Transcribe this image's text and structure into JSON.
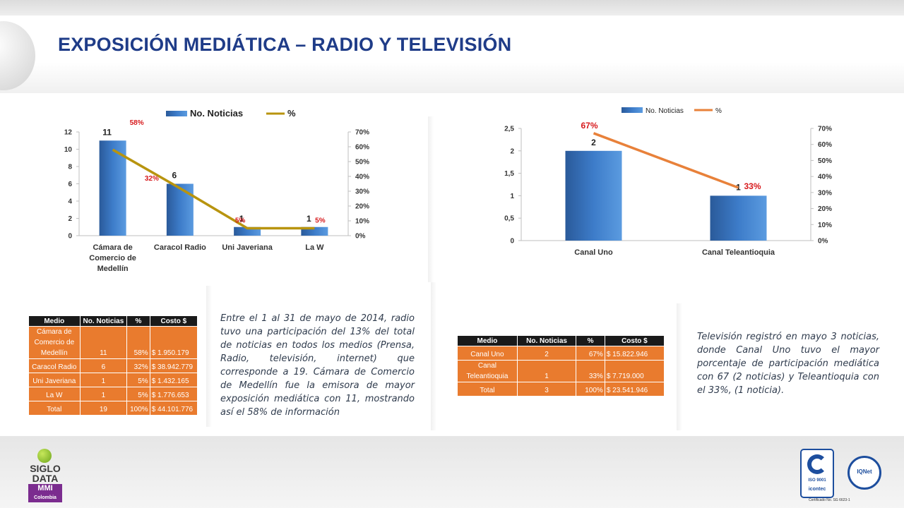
{
  "page": {
    "title": "EXPOSICIÓN MEDIÁTICA – RADIO Y TELEVISIÓN"
  },
  "chart_data": [
    {
      "type": "bar",
      "legend": [
        "No. Noticias",
        "%"
      ],
      "categories": [
        "Cámara de Comercio de Medellín",
        "Caracol Radio",
        "Uni Javeriana",
        "La W"
      ],
      "category_labels": [
        [
          "Cámara de",
          "Comercio de",
          "Medellín"
        ],
        [
          "Caracol Radio"
        ],
        [
          "Uni Javeriana"
        ],
        [
          "La W"
        ]
      ],
      "series": [
        {
          "name": "No. Noticias",
          "type": "bar",
          "values": [
            11,
            6,
            1,
            1
          ],
          "labels": [
            "11",
            "6",
            "1",
            "1"
          ],
          "axis": "left"
        },
        {
          "name": "%",
          "type": "line",
          "values": [
            58,
            32,
            5,
            5
          ],
          "labels": [
            "58%",
            "32%",
            "5%",
            "5%"
          ],
          "axis": "right"
        }
      ],
      "ylim": [
        0,
        12
      ],
      "y_ticks": [
        "0",
        "2",
        "4",
        "6",
        "8",
        "10",
        "12"
      ],
      "y2lim": [
        0,
        70
      ],
      "y2_ticks": [
        "0%",
        "10%",
        "20%",
        "30%",
        "40%",
        "50%",
        "60%",
        "70%"
      ],
      "colors": {
        "bar": "#3d7cc9",
        "line": "#b8940f",
        "percent_label": "#d7191c"
      }
    },
    {
      "type": "bar",
      "legend": [
        "No. Noticias",
        "%"
      ],
      "categories": [
        "Canal Uno",
        "Canal Teleantioquia"
      ],
      "category_labels": [
        [
          "Canal Uno"
        ],
        [
          "Canal Teleantioquia"
        ]
      ],
      "series": [
        {
          "name": "No. Noticias",
          "type": "bar",
          "values": [
            2,
            1
          ],
          "labels": [
            "2",
            "1"
          ],
          "axis": "left"
        },
        {
          "name": "%",
          "type": "line",
          "values": [
            67,
            33
          ],
          "labels": [
            "67%",
            "33%"
          ],
          "axis": "right"
        }
      ],
      "ylim": [
        0,
        2.5
      ],
      "y_ticks": [
        "0",
        "0,5",
        "1",
        "1,5",
        "2",
        "2,5"
      ],
      "y2lim": [
        0,
        70
      ],
      "y2_ticks": [
        "0%",
        "10%",
        "20%",
        "30%",
        "40%",
        "50%",
        "60%",
        "70%"
      ],
      "colors": {
        "bar": "#3d7cc9",
        "line": "#e8813a",
        "percent_label": "#d7191c"
      }
    }
  ],
  "radio_table": {
    "headers": [
      "Medio",
      "No. Noticias",
      "%",
      "Costo $"
    ],
    "rows": [
      {
        "medio": [
          "Cámara de",
          "Comercio de",
          "Medellín"
        ],
        "noticias": "11",
        "pct": "58%",
        "costo": "$ 1.950.179"
      },
      {
        "medio": [
          "Caracol Radio"
        ],
        "noticias": "6",
        "pct": "32%",
        "costo": "$ 38.942.779"
      },
      {
        "medio": [
          "Uni Javeriana"
        ],
        "noticias": "1",
        "pct": "5%",
        "costo": "$ 1.432.165"
      },
      {
        "medio": [
          "La W"
        ],
        "noticias": "1",
        "pct": "5%",
        "costo": "$ 1.776.653"
      },
      {
        "medio": [
          "Total"
        ],
        "noticias": "19",
        "pct": "100%",
        "costo": "$ 44.101.776"
      }
    ]
  },
  "tv_table": {
    "headers": [
      "Medio",
      "No. Noticias",
      "%",
      "Costo $"
    ],
    "rows": [
      {
        "medio": [
          "Canal Uno"
        ],
        "noticias": "2",
        "pct": "67%",
        "costo": "$ 15.822.946"
      },
      {
        "medio": [
          "Canal",
          "Teleantioquia"
        ],
        "noticias": "1",
        "pct": "33%",
        "costo": "$ 7.719.000"
      },
      {
        "medio": [
          "Total"
        ],
        "noticias": "3",
        "pct": "100%",
        "costo": "$ 23.541.946"
      }
    ]
  },
  "radio_text": "Entre el 1 al 31 de mayo de 2014, radio tuvo una participación del 13% del total de noticias en todos los medios (Prensa, Radio, televisión, internet) que corresponde a 19. Cámara de Comercio de Medellín fue la emisora de mayor exposición mediática con 11, mostrando así el 58% de información",
  "tv_text": "Televisión registró en mayo 3 noticias, donde Canal Uno tuvo el mayor porcentaje de participación mediática con 67 (2 noticias) y Teleantioquia con el 33%, (1 noticia).",
  "footer": {
    "logo_left": {
      "line1": "SIGLO",
      "line2": "DATA",
      "line3": "MMI",
      "line4": "Colombia"
    },
    "iso_label": "ISO 9001",
    "icontec_label": "icontec",
    "iqnet_label": "IQNet",
    "cert_text": "Certificado No. SG 6623-1"
  }
}
